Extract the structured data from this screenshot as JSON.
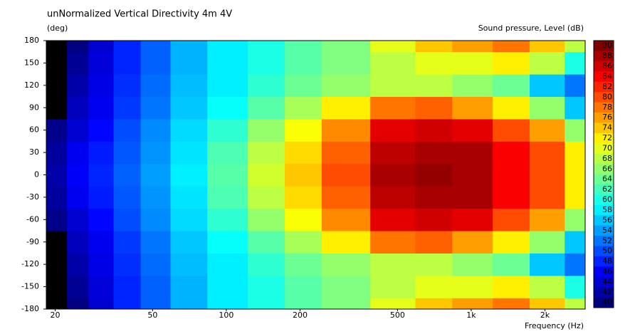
{
  "chart_data": {
    "type": "heatmap",
    "title": "unNormalized Vertical Directivity 4m 4V",
    "y_label": "(deg)",
    "x_label": "Frequency  (Hz)",
    "colorbar_label": "Sound pressure, Level  (dB)",
    "x_scale": "log",
    "xlim": [
      18.4,
      2920
    ],
    "xticks": [
      20,
      50,
      100,
      200,
      500,
      {
        "value": 1000,
        "label": "1k"
      },
      {
        "value": 2000,
        "label": "2k"
      }
    ],
    "ylim": [
      -180,
      180
    ],
    "yticks": [
      180,
      150,
      120,
      90,
      60,
      30,
      0,
      -30,
      -60,
      -90,
      -120,
      -150,
      -180
    ],
    "colormap": "jet",
    "under_color": "#000000",
    "zlim": [
      40,
      90
    ],
    "colorbar_ticks": [
      90,
      88,
      86,
      84,
      82,
      80,
      78,
      76,
      74,
      72,
      70,
      68,
      66,
      64,
      62,
      60,
      58,
      56,
      54,
      52,
      50,
      48,
      46,
      44,
      42,
      40
    ],
    "x": [
      20,
      25,
      30,
      40,
      50,
      70,
      100,
      150,
      200,
      300,
      500,
      700,
      1000,
      1500,
      2000,
      2900
    ],
    "y": [
      -180,
      -150,
      -120,
      -90,
      -60,
      -30,
      0,
      30,
      60,
      90,
      120,
      150,
      180
    ],
    "z": [
      [
        39,
        40,
        44,
        48,
        51,
        55,
        58,
        60,
        63,
        65,
        70,
        74,
        76,
        78,
        74,
        68
      ],
      [
        39,
        41,
        44.5,
        48,
        51,
        55,
        58,
        60,
        63,
        65,
        68,
        70,
        70,
        72,
        68,
        60
      ],
      [
        39,
        42,
        45,
        48.5,
        51.5,
        55.5,
        58,
        61,
        64,
        66,
        68,
        68,
        66,
        64,
        56,
        52
      ],
      [
        39.5,
        43,
        45.5,
        49,
        52,
        56,
        59,
        63,
        67,
        72,
        78,
        79,
        76,
        72,
        66,
        56
      ],
      [
        40.5,
        44,
        46.5,
        50,
        53,
        57,
        61,
        66,
        71,
        77,
        85,
        86,
        85,
        80,
        76,
        66
      ],
      [
        41.5,
        45.5,
        47.5,
        50.5,
        53.5,
        57.5,
        62.5,
        68,
        73,
        79,
        87,
        88,
        88,
        84,
        80,
        72
      ],
      [
        42,
        46,
        48,
        51,
        54,
        58,
        63,
        69,
        74,
        80,
        88,
        89,
        88,
        84,
        80,
        72
      ],
      [
        41.5,
        45.5,
        47.5,
        50.5,
        53.5,
        57.5,
        62.5,
        68,
        73,
        79,
        87,
        88,
        88,
        84,
        80,
        72
      ],
      [
        40.5,
        44,
        46.5,
        50,
        53,
        57,
        61,
        66,
        71,
        77,
        85,
        86,
        85,
        80,
        76,
        66
      ],
      [
        39.5,
        43,
        45.5,
        49,
        52,
        56,
        59,
        63,
        67,
        72,
        78,
        79,
        76,
        72,
        66,
        56
      ],
      [
        39,
        42,
        45,
        48.5,
        51.5,
        55.5,
        58,
        61,
        64,
        66,
        68,
        68,
        66,
        64,
        56,
        52
      ],
      [
        39,
        41,
        44.5,
        48,
        51,
        55,
        58,
        60,
        63,
        65,
        68,
        70,
        70,
        72,
        68,
        60
      ],
      [
        39,
        40,
        44,
        48,
        51,
        55,
        58,
        60,
        63,
        65,
        70,
        74,
        76,
        78,
        74,
        68
      ]
    ]
  }
}
